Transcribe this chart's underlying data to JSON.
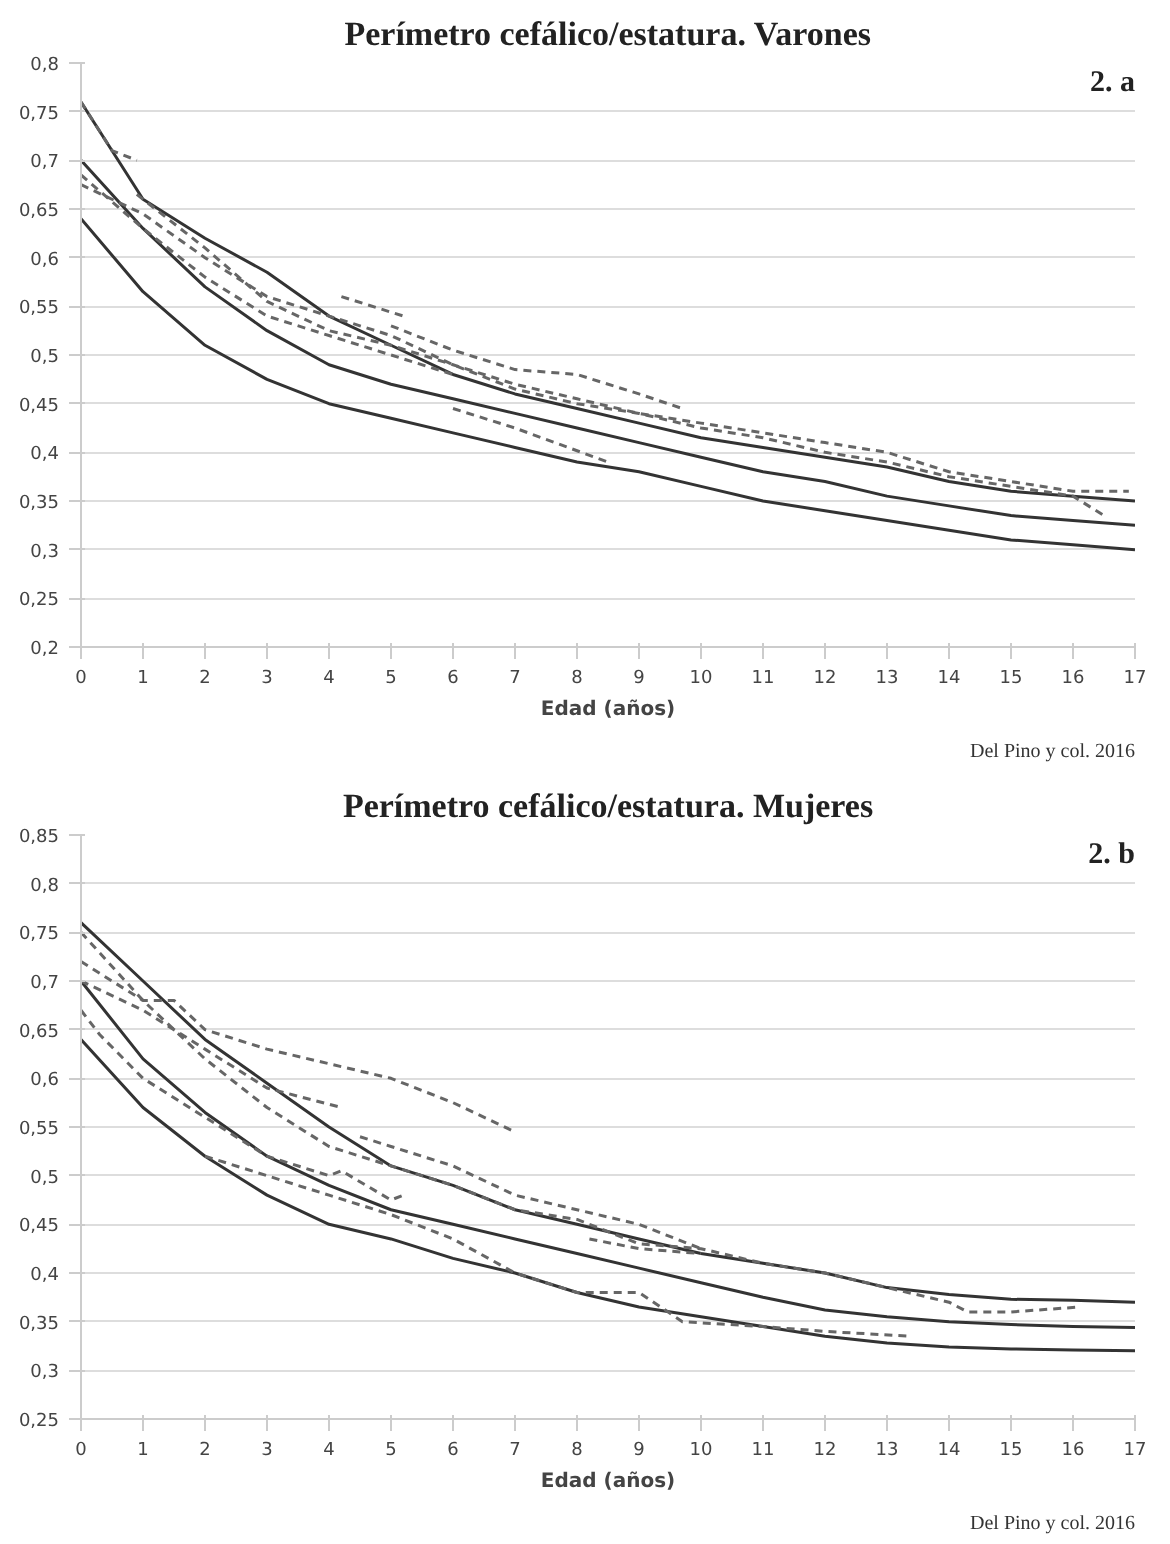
{
  "chart_data": [
    {
      "type": "line",
      "title": "Perímetro cefálico/estatura. Varones",
      "xlabel": "Edad (años)",
      "annotations": [
        "2. a",
        "Del Pino y col. 2016"
      ],
      "grid": "y",
      "xlim": [
        0,
        17
      ],
      "xticks": [
        0,
        1,
        2,
        3,
        4,
        5,
        6,
        7,
        8,
        9,
        10,
        11,
        12,
        13,
        14,
        15,
        16,
        17
      ],
      "ylim": [
        0.2,
        0.8
      ],
      "yticks": [
        {
          "value": 0.2,
          "label": "0,2"
        },
        {
          "value": 0.25,
          "label": "0,25"
        },
        {
          "value": 0.3,
          "label": "0,3"
        },
        {
          "value": 0.35,
          "label": "0,35"
        },
        {
          "value": 0.4,
          "label": "0,4"
        },
        {
          "value": 0.45,
          "label": "0,45"
        },
        {
          "value": 0.5,
          "label": "0,5"
        },
        {
          "value": 0.55,
          "label": "0,55"
        },
        {
          "value": 0.6,
          "label": "0,6"
        },
        {
          "value": 0.65,
          "label": "0,65"
        },
        {
          "value": 0.7,
          "label": "0,7"
        },
        {
          "value": 0.75,
          "label": "0,75"
        },
        {
          "value": 0.8,
          "label": "0,8"
        }
      ],
      "series": [
        {
          "color": "#333333",
          "line_style": "solid",
          "x": [
            0,
            1,
            2,
            3,
            4,
            5,
            6,
            7,
            8,
            9,
            10,
            11,
            12,
            13,
            14,
            15,
            16,
            17
          ],
          "values": [
            0.76,
            0.66,
            0.62,
            0.585,
            0.54,
            0.51,
            0.48,
            0.46,
            0.445,
            0.43,
            0.415,
            0.405,
            0.395,
            0.385,
            0.37,
            0.36,
            0.355,
            0.35
          ]
        },
        {
          "color": "#333333",
          "line_style": "solid",
          "x": [
            0,
            1,
            2,
            3,
            4,
            5,
            6,
            7,
            8,
            9,
            10,
            11,
            12,
            13,
            14,
            15,
            16,
            17
          ],
          "values": [
            0.7,
            0.63,
            0.57,
            0.525,
            0.49,
            0.47,
            0.455,
            0.44,
            0.425,
            0.41,
            0.395,
            0.38,
            0.37,
            0.355,
            0.345,
            0.335,
            0.33,
            0.325
          ]
        },
        {
          "color": "#333333",
          "line_style": "solid",
          "x": [
            0,
            1,
            2,
            3,
            4,
            5,
            6,
            7,
            8,
            9,
            10,
            11,
            12,
            13,
            14,
            15,
            16,
            17
          ],
          "values": [
            0.64,
            0.565,
            0.51,
            0.475,
            0.45,
            0.435,
            0.42,
            0.405,
            0.39,
            0.38,
            0.365,
            0.35,
            0.34,
            0.33,
            0.32,
            0.31,
            0.305,
            0.3
          ]
        },
        {
          "color": "#666666",
          "line_style": "dashed",
          "x": [
            0,
            0.5,
            0.9
          ],
          "values": [
            0.76,
            0.71,
            0.7
          ]
        },
        {
          "color": "#666666",
          "line_style": "dashed",
          "x": [
            0,
            1,
            2,
            3,
            4,
            5,
            6
          ],
          "values": [
            0.685,
            0.63,
            0.58,
            0.54,
            0.52,
            0.5,
            0.48
          ]
        },
        {
          "color": "#666666",
          "line_style": "dashed",
          "x": [
            0,
            1,
            2,
            3,
            4,
            5,
            6,
            7,
            8,
            9,
            10,
            11,
            12,
            13,
            14,
            15,
            16,
            16.5
          ],
          "values": [
            0.675,
            0.645,
            0.6,
            0.56,
            0.54,
            0.52,
            0.49,
            0.465,
            0.45,
            0.44,
            0.425,
            0.415,
            0.4,
            0.39,
            0.375,
            0.365,
            0.355,
            0.335
          ]
        },
        {
          "color": "#666666",
          "line_style": "dashed",
          "x": [
            0.9,
            2,
            3,
            4,
            5,
            6,
            7,
            8,
            9,
            10,
            11,
            12,
            13,
            14,
            15,
            16,
            16.9
          ],
          "values": [
            0.665,
            0.61,
            0.555,
            0.525,
            0.51,
            0.49,
            0.47,
            0.455,
            0.44,
            0.43,
            0.42,
            0.41,
            0.4,
            0.38,
            0.37,
            0.36,
            0.36
          ]
        },
        {
          "color": "#666666",
          "line_style": "dashed",
          "x": [
            4.2,
            5.2
          ],
          "values": [
            0.56,
            0.54
          ]
        },
        {
          "color": "#666666",
          "line_style": "dashed",
          "x": [
            5,
            6,
            7,
            8,
            9,
            9.7
          ],
          "values": [
            0.53,
            0.505,
            0.485,
            0.48,
            0.46,
            0.445
          ]
        },
        {
          "color": "#666666",
          "line_style": "dashed",
          "x": [
            6,
            7,
            8.5
          ],
          "values": [
            0.445,
            0.425,
            0.39
          ]
        }
      ]
    },
    {
      "type": "line",
      "title": "Perímetro cefálico/estatura. Mujeres",
      "xlabel": "Edad (años)",
      "annotations": [
        "2. b",
        "Del Pino y col. 2016"
      ],
      "grid": "y",
      "xlim": [
        0,
        17
      ],
      "xticks": [
        0,
        1,
        2,
        3,
        4,
        5,
        6,
        7,
        8,
        9,
        10,
        11,
        12,
        13,
        14,
        15,
        16,
        17
      ],
      "ylim": [
        0.25,
        0.85
      ],
      "yticks": [
        {
          "value": 0.25,
          "label": "0,25"
        },
        {
          "value": 0.3,
          "label": "0,3"
        },
        {
          "value": 0.35,
          "label": "0,35"
        },
        {
          "value": 0.4,
          "label": "0,4"
        },
        {
          "value": 0.45,
          "label": "0,45"
        },
        {
          "value": 0.5,
          "label": "0,5"
        },
        {
          "value": 0.55,
          "label": "0,55"
        },
        {
          "value": 0.6,
          "label": "0,6"
        },
        {
          "value": 0.65,
          "label": "0,65"
        },
        {
          "value": 0.7,
          "label": "0,7"
        },
        {
          "value": 0.75,
          "label": "0,75"
        },
        {
          "value": 0.8,
          "label": "0,8"
        },
        {
          "value": 0.85,
          "label": "0,85"
        }
      ],
      "series": [
        {
          "color": "#333333",
          "line_style": "solid",
          "x": [
            0,
            1,
            2,
            3,
            4,
            5,
            6,
            7,
            8,
            9,
            10,
            11,
            12,
            13,
            14,
            15,
            16,
            17
          ],
          "values": [
            0.76,
            0.7,
            0.64,
            0.595,
            0.55,
            0.51,
            0.49,
            0.465,
            0.45,
            0.435,
            0.42,
            0.41,
            0.4,
            0.385,
            0.378,
            0.373,
            0.372,
            0.37
          ]
        },
        {
          "color": "#333333",
          "line_style": "solid",
          "x": [
            0,
            1,
            2,
            3,
            4,
            5,
            6,
            7,
            8,
            9,
            10,
            11,
            12,
            13,
            14,
            15,
            16,
            17
          ],
          "values": [
            0.7,
            0.62,
            0.565,
            0.52,
            0.49,
            0.465,
            0.45,
            0.435,
            0.42,
            0.405,
            0.39,
            0.375,
            0.362,
            0.355,
            0.35,
            0.347,
            0.345,
            0.344
          ]
        },
        {
          "color": "#333333",
          "line_style": "solid",
          "x": [
            0,
            1,
            2,
            3,
            4,
            5,
            6,
            7,
            8,
            9,
            10,
            11,
            12,
            13,
            14,
            15,
            16,
            17
          ],
          "values": [
            0.64,
            0.57,
            0.52,
            0.48,
            0.45,
            0.435,
            0.415,
            0.4,
            0.38,
            0.365,
            0.355,
            0.345,
            0.335,
            0.328,
            0.324,
            0.322,
            0.321,
            0.32
          ]
        },
        {
          "color": "#666666",
          "line_style": "dashed",
          "x": [
            0,
            1,
            1.5,
            2,
            3,
            4,
            5,
            6,
            7
          ],
          "values": [
            0.72,
            0.68,
            0.68,
            0.65,
            0.63,
            0.615,
            0.6,
            0.575,
            0.545
          ]
        },
        {
          "color": "#666666",
          "line_style": "dashed",
          "x": [
            0,
            1,
            2,
            3,
            4.2
          ],
          "values": [
            0.7,
            0.67,
            0.63,
            0.59,
            0.57
          ]
        },
        {
          "color": "#666666",
          "line_style": "dashed",
          "x": [
            0,
            1,
            2,
            3,
            4,
            5,
            6,
            7,
            8,
            9,
            10,
            11,
            12,
            13,
            14,
            14.3,
            15,
            16.1
          ],
          "values": [
            0.75,
            0.68,
            0.62,
            0.57,
            0.53,
            0.51,
            0.49,
            0.465,
            0.455,
            0.43,
            0.425,
            0.41,
            0.4,
            0.385,
            0.37,
            0.36,
            0.36,
            0.365
          ]
        },
        {
          "color": "#666666",
          "line_style": "dashed",
          "x": [
            2,
            3,
            4,
            5,
            6,
            7,
            8,
            9,
            9.7,
            11,
            12,
            13.4
          ],
          "values": [
            0.52,
            0.5,
            0.48,
            0.46,
            0.435,
            0.4,
            0.38,
            0.38,
            0.35,
            0.345,
            0.34,
            0.335
          ]
        },
        {
          "color": "#666666",
          "line_style": "dashed",
          "x": [
            0,
            0.3,
            1,
            2,
            3,
            4,
            4.2,
            5,
            5.2
          ],
          "values": [
            0.67,
            0.645,
            0.6,
            0.56,
            0.52,
            0.5,
            0.505,
            0.475,
            0.48
          ]
        },
        {
          "color": "#666666",
          "line_style": "dashed",
          "x": [
            4.5,
            5,
            6,
            7,
            8,
            9,
            10
          ],
          "values": [
            0.54,
            0.53,
            0.51,
            0.48,
            0.465,
            0.45,
            0.425
          ]
        },
        {
          "color": "#666666",
          "line_style": "dashed",
          "x": [
            8.2,
            9,
            10
          ],
          "values": [
            0.435,
            0.425,
            0.42
          ]
        }
      ]
    }
  ]
}
